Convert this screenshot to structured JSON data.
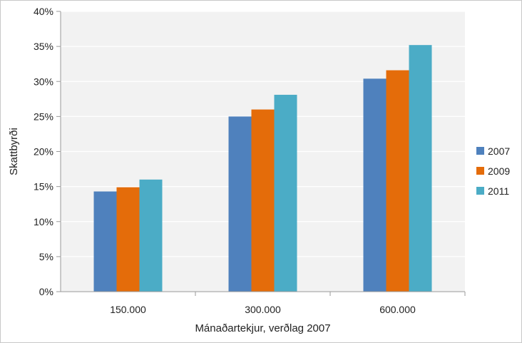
{
  "chart_data": {
    "type": "bar",
    "categories": [
      "150.000",
      "300.000",
      "600.000"
    ],
    "series": [
      {
        "name": "2007",
        "values": [
          14.3,
          25.0,
          30.4
        ],
        "color": "#4f81bd"
      },
      {
        "name": "2009",
        "values": [
          14.9,
          26.0,
          31.6
        ],
        "color": "#e46c0a"
      },
      {
        "name": "2011",
        "values": [
          16.0,
          28.1,
          35.2
        ],
        "color": "#4bacc6"
      }
    ],
    "xlabel": "Mánaðartekjur, verðlag 2007",
    "ylabel": "Skattbyrði",
    "ylim": [
      0,
      40
    ],
    "yticks": [
      0,
      5,
      10,
      15,
      20,
      25,
      30,
      35,
      40
    ],
    "ytick_suffix": "%",
    "grid": true,
    "plot_background": "#f2f2f2",
    "grid_color": "#ffffff",
    "legend_position": "right"
  }
}
